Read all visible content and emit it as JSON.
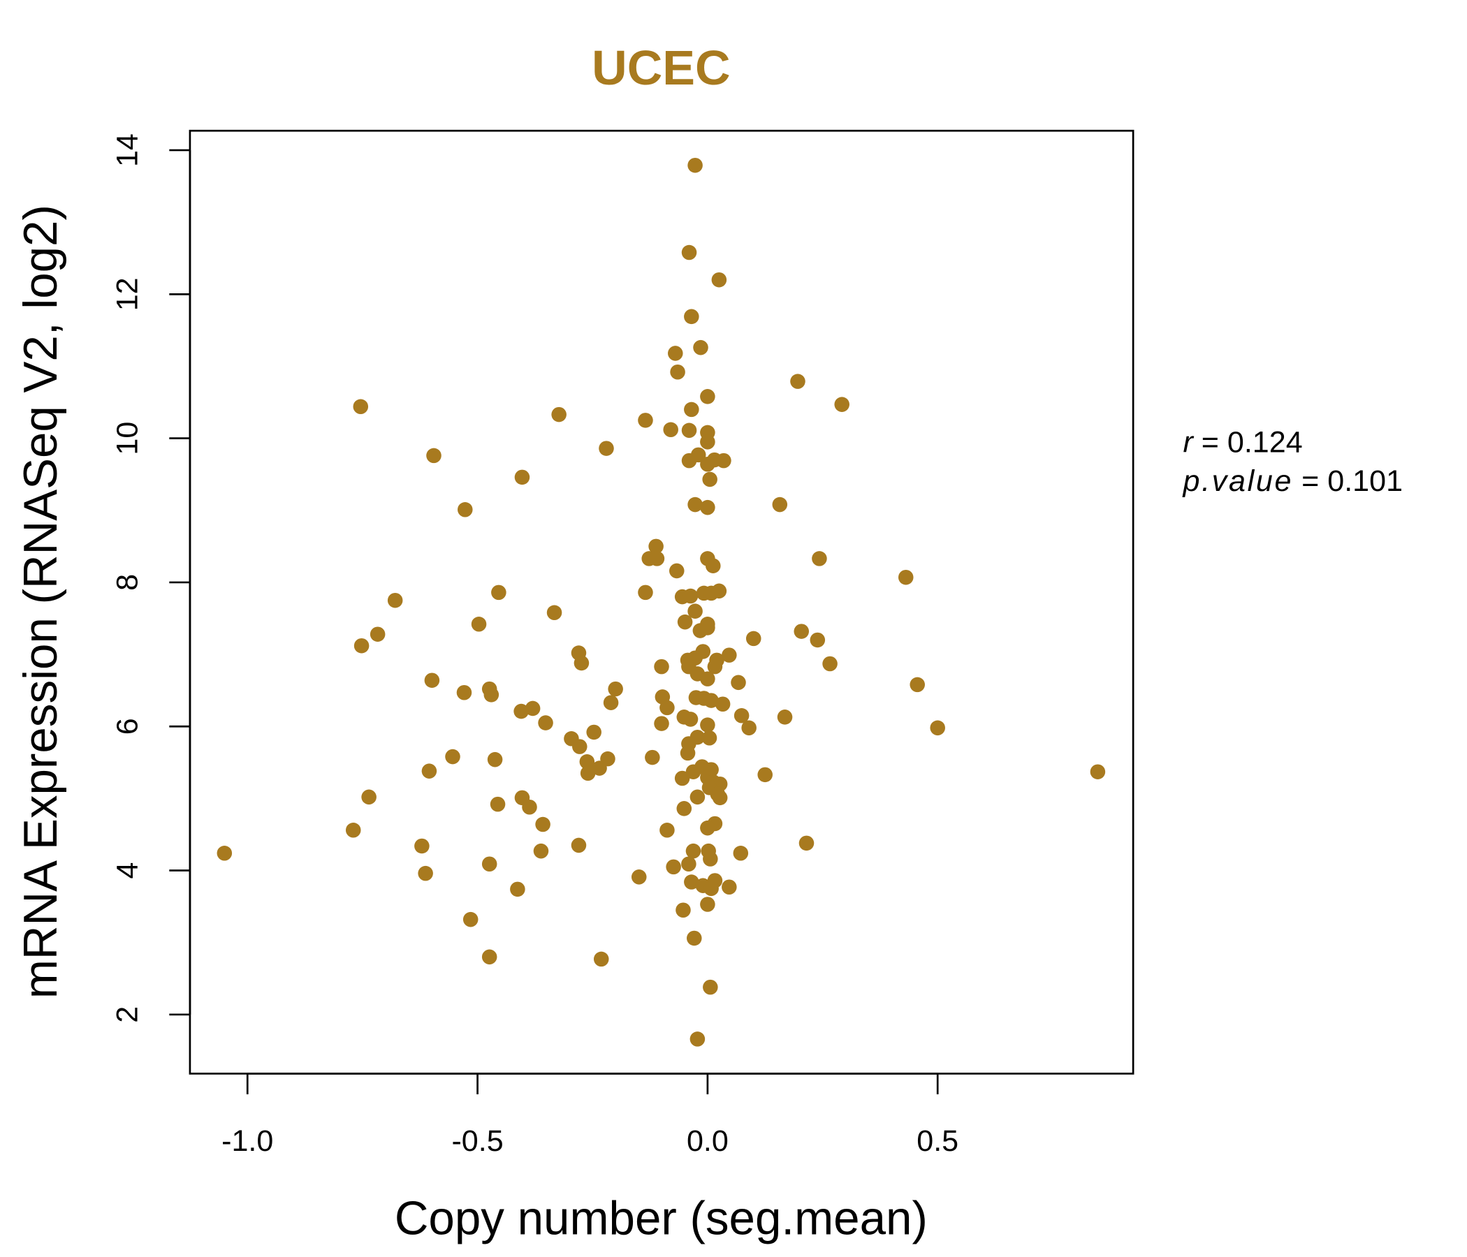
{
  "chart_data": {
    "type": "scatter",
    "title": "UCEC",
    "xlabel": "Copy number (seg.mean)",
    "ylabel": "mRNA Expression (RNASeq V2, log2)",
    "xlim": [
      -1.125,
      0.925
    ],
    "ylim": [
      1.18,
      14.27
    ],
    "xticks": [
      -1.0,
      -0.5,
      0.0,
      0.5
    ],
    "xtick_labels": [
      "-1.0",
      "-0.5",
      "0.0",
      "0.5"
    ],
    "yticks": [
      2,
      4,
      6,
      8,
      10,
      12,
      14
    ],
    "ytick_labels": [
      "2",
      "4",
      "6",
      "8",
      "10",
      "12",
      "14"
    ],
    "grid": false,
    "point_color": "#A87A1F",
    "title_color": "#A87A1F",
    "stats": {
      "r_label": "r",
      "r_value": "= 0.124",
      "p_label": "p.value",
      "p_value": "= 0.101"
    },
    "points": [
      [
        -0.027,
        13.79
      ],
      [
        -0.04,
        12.58
      ],
      [
        0.025,
        12.2
      ],
      [
        -0.035,
        11.69
      ],
      [
        -0.07,
        11.18
      ],
      [
        -0.015,
        11.26
      ],
      [
        -0.065,
        10.92
      ],
      [
        -0.754,
        10.44
      ],
      [
        0.196,
        10.79
      ],
      [
        0.292,
        10.47
      ],
      [
        0,
        10.58
      ],
      [
        -0.323,
        10.33
      ],
      [
        -0.135,
        10.25
      ],
      [
        -0.035,
        10.4
      ],
      [
        -0.08,
        10.12
      ],
      [
        -0.04,
        10.11
      ],
      [
        0,
        10.08
      ],
      [
        0,
        9.95
      ],
      [
        -0.22,
        9.86
      ],
      [
        -0.595,
        9.76
      ],
      [
        -0.04,
        9.69
      ],
      [
        -0.02,
        9.77
      ],
      [
        0.015,
        9.7
      ],
      [
        0.035,
        9.69
      ],
      [
        0,
        9.64
      ],
      [
        0.005,
        9.43
      ],
      [
        -0.403,
        9.46
      ],
      [
        -0.527,
        9.01
      ],
      [
        -0.027,
        9.08
      ],
      [
        0,
        9.04
      ],
      [
        0.157,
        9.08
      ],
      [
        -0.112,
        8.5
      ],
      [
        -0.127,
        8.33
      ],
      [
        -0.11,
        8.33
      ],
      [
        0,
        8.33
      ],
      [
        0.012,
        8.23
      ],
      [
        -0.067,
        8.16
      ],
      [
        0.243,
        8.33
      ],
      [
        0.431,
        8.07
      ],
      [
        -0.454,
        7.86
      ],
      [
        -0.135,
        7.86
      ],
      [
        -0.055,
        7.8
      ],
      [
        -0.037,
        7.81
      ],
      [
        -0.008,
        7.85
      ],
      [
        0.008,
        7.85
      ],
      [
        0.025,
        7.88
      ],
      [
        -0.679,
        7.75
      ],
      [
        -0.333,
        7.58
      ],
      [
        -0.027,
        7.6
      ],
      [
        -0.049,
        7.45
      ],
      [
        0,
        7.42
      ],
      [
        -0.497,
        7.42
      ],
      [
        -0.016,
        7.33
      ],
      [
        0,
        7.37
      ],
      [
        0.204,
        7.32
      ],
      [
        -0.717,
        7.28
      ],
      [
        -0.752,
        7.12
      ],
      [
        0.1,
        7.22
      ],
      [
        0.239,
        7.2
      ],
      [
        -0.28,
        7.02
      ],
      [
        -0.01,
        7.04
      ],
      [
        0.047,
        6.99
      ],
      [
        -0.043,
        6.92
      ],
      [
        -0.027,
        6.95
      ],
      [
        0.02,
        6.92
      ],
      [
        -0.274,
        6.88
      ],
      [
        -0.1,
        6.83
      ],
      [
        -0.041,
        6.83
      ],
      [
        0.016,
        6.83
      ],
      [
        0.266,
        6.87
      ],
      [
        -0.022,
        6.73
      ],
      [
        0,
        6.66
      ],
      [
        -0.599,
        6.64
      ],
      [
        0.067,
        6.61
      ],
      [
        0.456,
        6.58
      ],
      [
        -0.2,
        6.52
      ],
      [
        -0.474,
        6.52
      ],
      [
        -0.529,
        6.47
      ],
      [
        -0.47,
        6.44
      ],
      [
        -0.098,
        6.41
      ],
      [
        -0.025,
        6.4
      ],
      [
        -0.008,
        6.39
      ],
      [
        0.008,
        6.36
      ],
      [
        -0.21,
        6.33
      ],
      [
        0.033,
        6.31
      ],
      [
        -0.088,
        6.26
      ],
      [
        -0.38,
        6.25
      ],
      [
        -0.405,
        6.21
      ],
      [
        0.074,
        6.15
      ],
      [
        0.168,
        6.13
      ],
      [
        -0.051,
        6.13
      ],
      [
        -0.037,
        6.1
      ],
      [
        -0.352,
        6.05
      ],
      [
        -0.1,
        6.04
      ],
      [
        0,
        6.02
      ],
      [
        0.09,
        5.98
      ],
      [
        0.5,
        5.98
      ],
      [
        -0.247,
        5.92
      ],
      [
        -0.296,
        5.83
      ],
      [
        -0.022,
        5.85
      ],
      [
        0.004,
        5.84
      ],
      [
        -0.278,
        5.72
      ],
      [
        -0.041,
        5.76
      ],
      [
        -0.043,
        5.63
      ],
      [
        -0.554,
        5.58
      ],
      [
        -0.12,
        5.57
      ],
      [
        -0.217,
        5.55
      ],
      [
        -0.462,
        5.54
      ],
      [
        -0.262,
        5.51
      ],
      [
        -0.235,
        5.42
      ],
      [
        -0.012,
        5.44
      ],
      [
        0.008,
        5.4
      ],
      [
        -0.031,
        5.37
      ],
      [
        -0.605,
        5.38
      ],
      [
        0.848,
        5.37
      ],
      [
        -0.26,
        5.35
      ],
      [
        0.125,
        5.33
      ],
      [
        0,
        5.29
      ],
      [
        -0.055,
        5.28
      ],
      [
        0.012,
        5.23
      ],
      [
        0.027,
        5.2
      ],
      [
        0.004,
        5.15
      ],
      [
        0.022,
        5.06
      ],
      [
        -0.022,
        5.02
      ],
      [
        0.027,
        5.01
      ],
      [
        -0.736,
        5.02
      ],
      [
        -0.403,
        5.01
      ],
      [
        -0.456,
        4.92
      ],
      [
        -0.387,
        4.88
      ],
      [
        -0.051,
        4.86
      ],
      [
        -0.358,
        4.64
      ],
      [
        0.016,
        4.65
      ],
      [
        0,
        4.59
      ],
      [
        -0.77,
        4.56
      ],
      [
        -0.088,
        4.56
      ],
      [
        0.215,
        4.38
      ],
      [
        -0.621,
        4.34
      ],
      [
        -0.28,
        4.35
      ],
      [
        -0.031,
        4.27
      ],
      [
        0.002,
        4.27
      ],
      [
        -0.362,
        4.27
      ],
      [
        -1.05,
        4.24
      ],
      [
        0.072,
        4.24
      ],
      [
        0.006,
        4.16
      ],
      [
        -0.474,
        4.09
      ],
      [
        -0.041,
        4.09
      ],
      [
        -0.074,
        4.05
      ],
      [
        -0.613,
        3.96
      ],
      [
        -0.149,
        3.91
      ],
      [
        -0.035,
        3.84
      ],
      [
        0.016,
        3.86
      ],
      [
        -0.01,
        3.79
      ],
      [
        0.008,
        3.75
      ],
      [
        0.047,
        3.77
      ],
      [
        -0.413,
        3.74
      ],
      [
        0,
        3.53
      ],
      [
        -0.053,
        3.45
      ],
      [
        -0.515,
        3.32
      ],
      [
        -0.029,
        3.06
      ],
      [
        -0.474,
        2.8
      ],
      [
        -0.231,
        2.77
      ],
      [
        0.006,
        2.38
      ],
      [
        -0.022,
        1.66
      ]
    ]
  }
}
